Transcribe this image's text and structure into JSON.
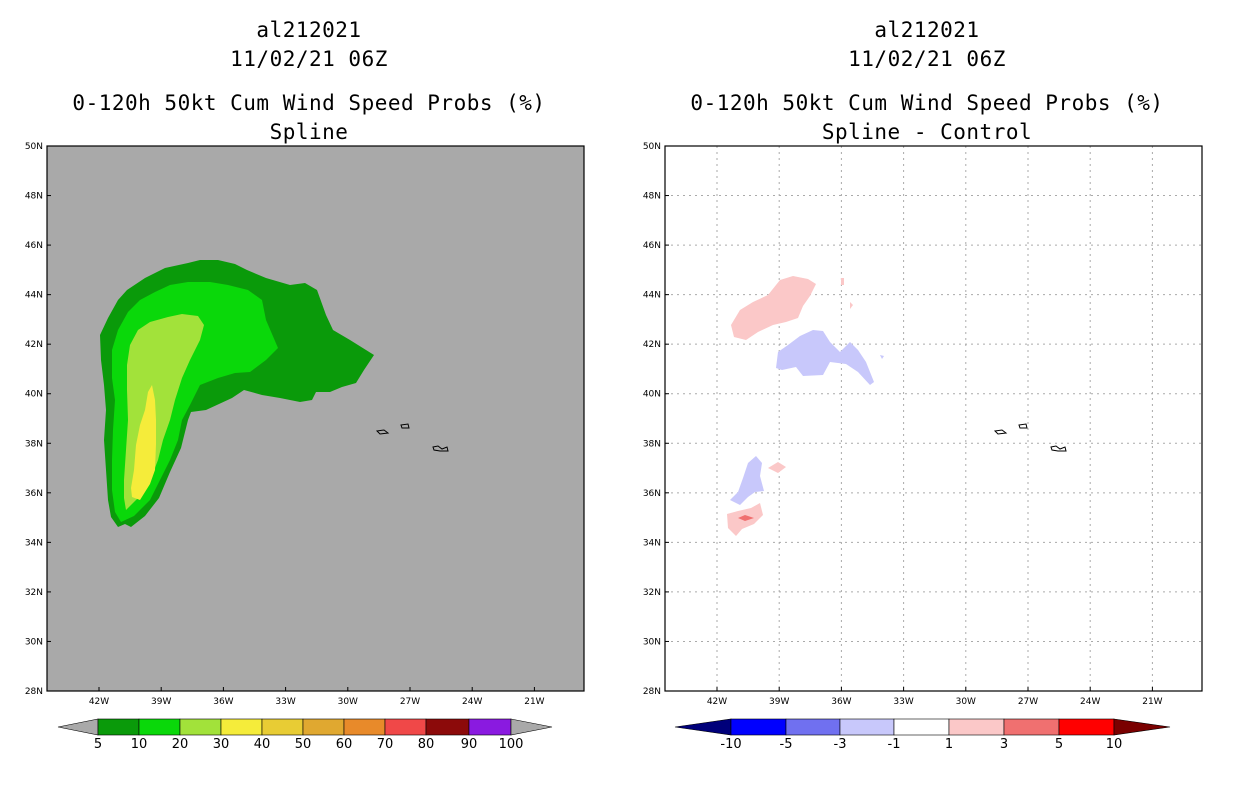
{
  "colors": {
    "grey_background": "#a9a9a9",
    "green_dark": "#0a9a0a",
    "green": "#0ad80a",
    "green_light": "#a2e23a",
    "yellow": "#f5ec3a",
    "orange_yellow": "#e8cc34",
    "orange": "#e0a830",
    "orange_dark": "#e88a2a",
    "red": "#f04848",
    "maroon": "#8c0a0a",
    "purple": "#8a1ae0",
    "diff_pos_light": "#fbc8c8",
    "diff_neg_light": "#c8c8fb",
    "diff_pos_mid": "#f07070",
    "diff_neg_mid": "#7070f0",
    "diff_pos_strong": "#ff0000",
    "diff_neg_strong": "#0000ff",
    "diff_pos_max": "#7a0000",
    "diff_neg_max": "#00007a"
  },
  "left_panel": {
    "storm_id": "al212021",
    "datetime": "11/02/21 06Z",
    "product": "0-120h 50kt Cum Wind Speed Probs (%)",
    "subtitle": "Spline",
    "colorbar_labels": [
      "5",
      "10",
      "20",
      "30",
      "40",
      "50",
      "60",
      "70",
      "80",
      "90",
      "100"
    ]
  },
  "right_panel": {
    "storm_id": "al212021",
    "datetime": "11/02/21 06Z",
    "product": "0-120h 50kt Cum Wind Speed Probs (%)",
    "subtitle": "Spline - Control",
    "colorbar_labels": [
      "-10",
      "-5",
      "-3",
      "-1",
      "1",
      "3",
      "5",
      "10"
    ]
  },
  "axes": {
    "lat_labels": [
      "50N",
      "48N",
      "46N",
      "44N",
      "42N",
      "40N",
      "38N",
      "36N",
      "34N",
      "32N",
      "30N",
      "28N"
    ],
    "lon_labels": [
      "42W",
      "39W",
      "36W",
      "33W",
      "30W",
      "27W",
      "24W",
      "21W"
    ]
  }
}
